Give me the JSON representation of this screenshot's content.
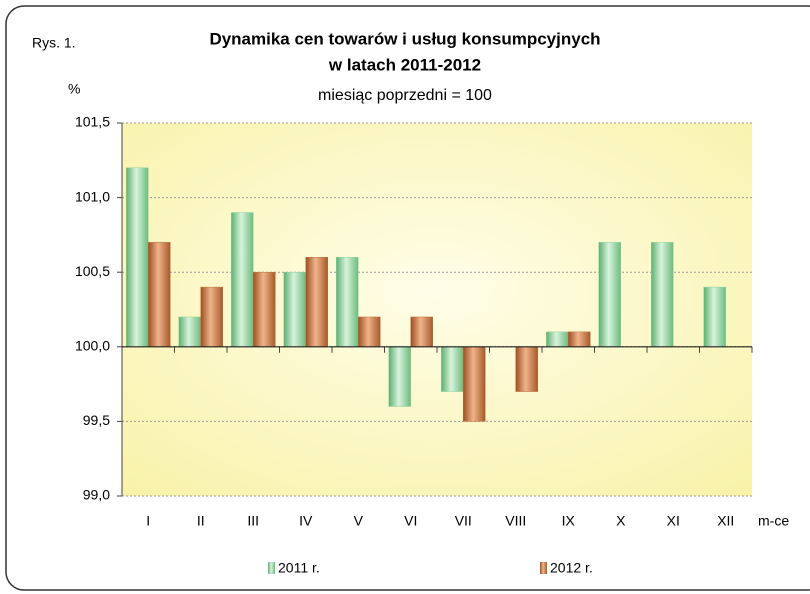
{
  "chart_data": {
    "type": "bar",
    "figure_label": "Rys. 1.",
    "title": "Dynamika cen towarów i usług konsumpcyjnych",
    "title_line2": "w latach 2011-2012",
    "subtitle": "miesiąc poprzedni = 100",
    "y_label": "%",
    "x_label": "m-ce",
    "categories": [
      "I",
      "II",
      "III",
      "IV",
      "V",
      "VI",
      "VII",
      "VIII",
      "IX",
      "X",
      "XI",
      "XII"
    ],
    "series": [
      {
        "name": "2011 r.",
        "color": "#8fd19e",
        "values": [
          101.2,
          100.2,
          100.9,
          100.5,
          100.6,
          99.6,
          99.7,
          100.0,
          100.1,
          100.7,
          100.7,
          100.4
        ]
      },
      {
        "name": "2012 r.",
        "color": "#c0703a",
        "values": [
          100.7,
          100.4,
          100.5,
          100.6,
          100.2,
          100.2,
          99.5,
          99.7,
          100.1,
          null,
          null,
          null
        ]
      }
    ],
    "ylim": [
      99.0,
      101.5
    ],
    "yticks": [
      {
        "value": 99.0,
        "label": "99,0"
      },
      {
        "value": 99.5,
        "label": "99,5"
      },
      {
        "value": 100.0,
        "label": "100,0"
      },
      {
        "value": 100.5,
        "label": "100,5"
      },
      {
        "value": 101.0,
        "label": "101,0"
      },
      {
        "value": 101.5,
        "label": "101,5"
      }
    ],
    "x_axis_at": 100.0,
    "grid": true,
    "legend": "bottom"
  }
}
